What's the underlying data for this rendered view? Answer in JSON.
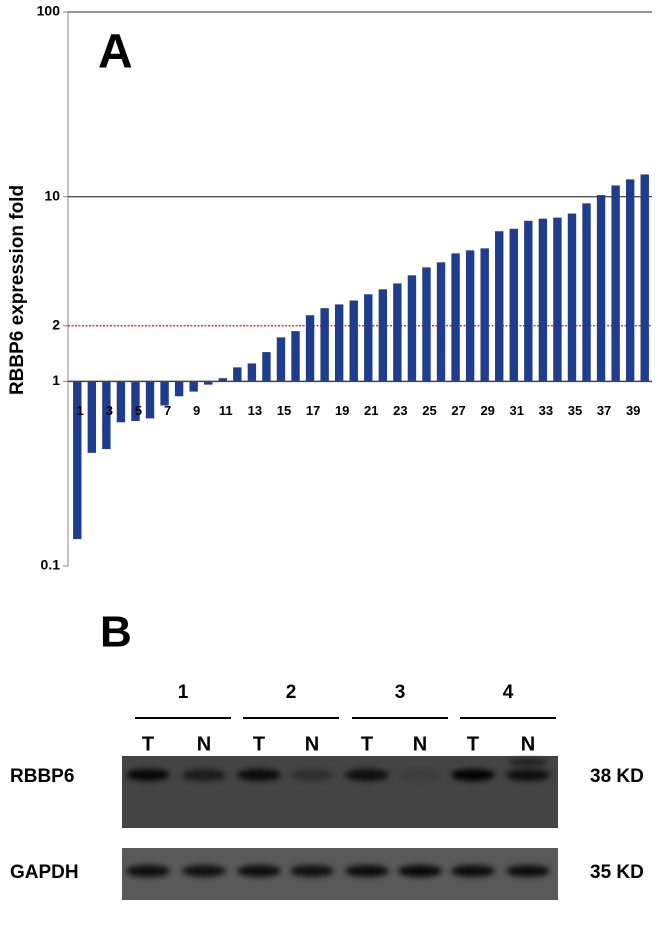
{
  "chart_data": {
    "type": "bar",
    "panel_label": "A",
    "y_label": "RBBP6 expression fold",
    "categories": [
      "1",
      null,
      "3",
      null,
      "5",
      null,
      "7",
      null,
      "9",
      null,
      "11",
      null,
      "13",
      null,
      "15",
      null,
      "17",
      null,
      "19",
      null,
      "21",
      null,
      "23",
      null,
      "25",
      null,
      "27",
      null,
      "29",
      null,
      "31",
      null,
      "33",
      null,
      "35",
      null,
      "37",
      null,
      "39",
      null
    ],
    "values": [
      0.14,
      0.41,
      0.43,
      0.6,
      0.61,
      0.63,
      0.74,
      0.83,
      0.88,
      0.96,
      1.04,
      1.19,
      1.25,
      1.44,
      1.73,
      1.87,
      2.28,
      2.49,
      2.61,
      2.74,
      2.96,
      3.15,
      3.39,
      3.75,
      4.14,
      4.41,
      4.93,
      5.12,
      5.25,
      6.5,
      6.7,
      7.4,
      7.6,
      7.7,
      8.1,
      9.2,
      10.2,
      11.5,
      12.4,
      13.2
    ],
    "color": "#1f3d8c",
    "log_scale": true,
    "baseline": 1,
    "ylim": [
      0.1,
      100
    ],
    "yticks": [
      0.1,
      1,
      2,
      10,
      100
    ],
    "grid": true,
    "reference_line": {
      "value": 2,
      "color": "#e01010"
    }
  },
  "blot": {
    "panel_label": "B",
    "groups": [
      {
        "label": "1",
        "lanes": [
          "T",
          "N"
        ]
      },
      {
        "label": "2",
        "lanes": [
          "T",
          "N"
        ]
      },
      {
        "label": "3",
        "lanes": [
          "T",
          "N"
        ]
      },
      {
        "label": "4",
        "lanes": [
          "T",
          "N"
        ]
      }
    ],
    "rows": [
      {
        "label": "RBBP6",
        "size": "38 KD"
      },
      {
        "label": "GAPDH",
        "size": "35 KD"
      }
    ]
  }
}
